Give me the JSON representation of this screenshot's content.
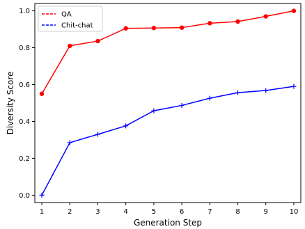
{
  "chart_data": {
    "type": "line",
    "xlabel": "Generation Step",
    "ylabel": "Diversity Score",
    "x": [
      1,
      2,
      3,
      4,
      5,
      6,
      7,
      8,
      9,
      10
    ],
    "xlim": [
      0.75,
      10.25
    ],
    "ylim": [
      -0.04,
      1.04
    ],
    "xticks": [
      "1",
      "2",
      "3",
      "4",
      "5",
      "6",
      "7",
      "8",
      "9",
      "10"
    ],
    "yticks": [
      "0.0",
      "0.2",
      "0.4",
      "0.6",
      "0.8",
      "1.0"
    ],
    "ytick_values": [
      0.0,
      0.2,
      0.4,
      0.6,
      0.8,
      1.0
    ],
    "grid": false,
    "legend_position": "top-left",
    "series": [
      {
        "name": "QA",
        "color": "#ff0000",
        "marker": "circle",
        "values": [
          0.55,
          0.81,
          0.836,
          0.905,
          0.907,
          0.909,
          0.933,
          0.942,
          0.97,
          1.0
        ]
      },
      {
        "name": "Chit-chat",
        "color": "#0000ff",
        "marker": "plus",
        "values": [
          0.0,
          0.285,
          0.33,
          0.376,
          0.458,
          0.487,
          0.526,
          0.556,
          0.568,
          0.59
        ]
      }
    ]
  }
}
